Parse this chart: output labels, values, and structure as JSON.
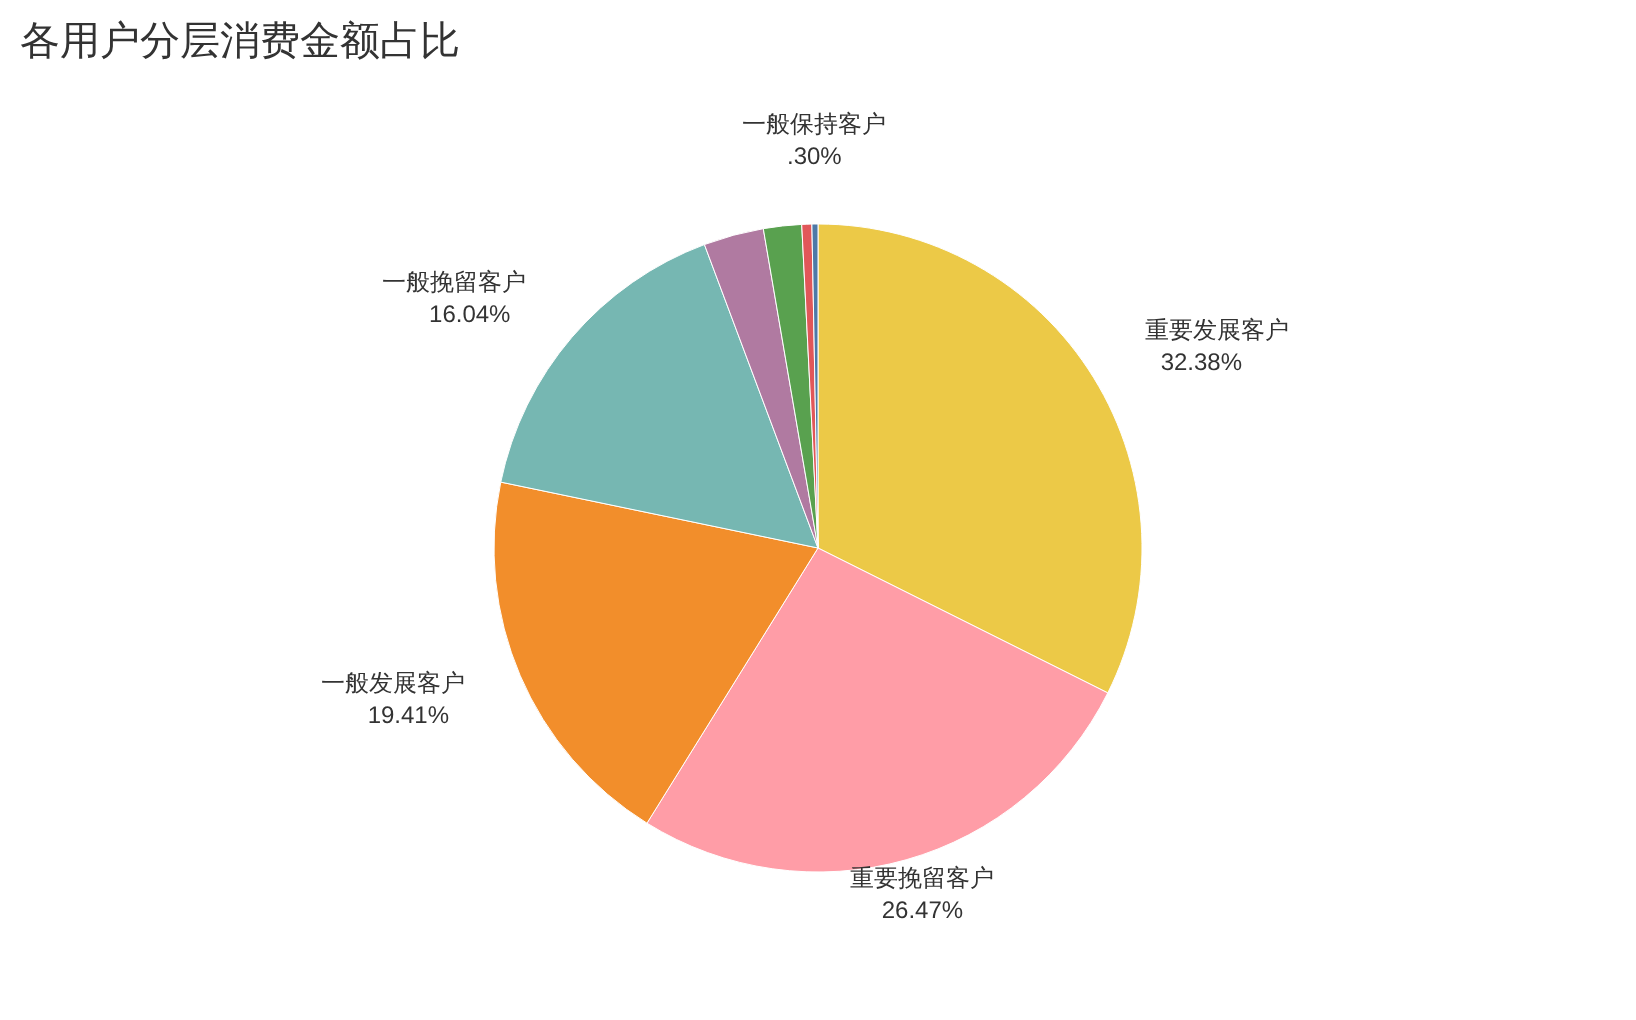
{
  "chart_data": {
    "type": "pie",
    "title": "各用户分层消费金额占比",
    "categories": [
      "重要发展客户",
      "重要挽留客户",
      "一般发展客户",
      "一般挽留客户",
      null,
      null,
      null,
      "一般保持客户"
    ],
    "values": [
      32.38,
      26.47,
      19.41,
      16.04,
      3.0,
      1.9,
      0.5,
      0.3
    ],
    "value_labels": [
      "32.38%",
      "26.47%",
      "19.41%",
      "16.04%",
      null,
      null,
      null,
      ".30%"
    ],
    "colors": [
      "#ecc947",
      "#ff9da7",
      "#f28e2b",
      "#76b7b2",
      "#b07aa1",
      "#59a14f",
      "#e15759",
      "#4e79a7"
    ],
    "legend": false
  }
}
